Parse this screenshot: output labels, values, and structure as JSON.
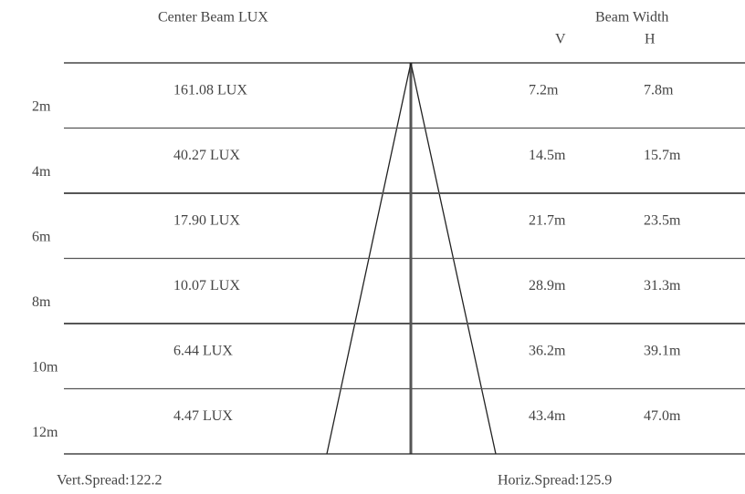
{
  "header": {
    "center_beam": "Center Beam LUX",
    "beam_width": "Beam Width",
    "v": "V",
    "h": "H"
  },
  "rows": [
    {
      "distance": "2m",
      "lux": "161.08 LUX",
      "v": "7.2m",
      "h": "7.8m"
    },
    {
      "distance": "4m",
      "lux": "40.27 LUX",
      "v": "14.5m",
      "h": "15.7m"
    },
    {
      "distance": "6m",
      "lux": "17.90 LUX",
      "v": "21.7m",
      "h": "23.5m"
    },
    {
      "distance": "8m",
      "lux": "10.07 LUX",
      "v": "28.9m",
      "h": "31.3m"
    },
    {
      "distance": "10m",
      "lux": "6.44 LUX",
      "v": "36.2m",
      "h": "39.1m"
    },
    {
      "distance": "12m",
      "lux": "4.47 LUX",
      "v": "43.4m",
      "h": "47.0m"
    }
  ],
  "footer": {
    "vert": "Vert.Spread:122.2",
    "horiz": "Horiz.Spread:125.9"
  }
}
